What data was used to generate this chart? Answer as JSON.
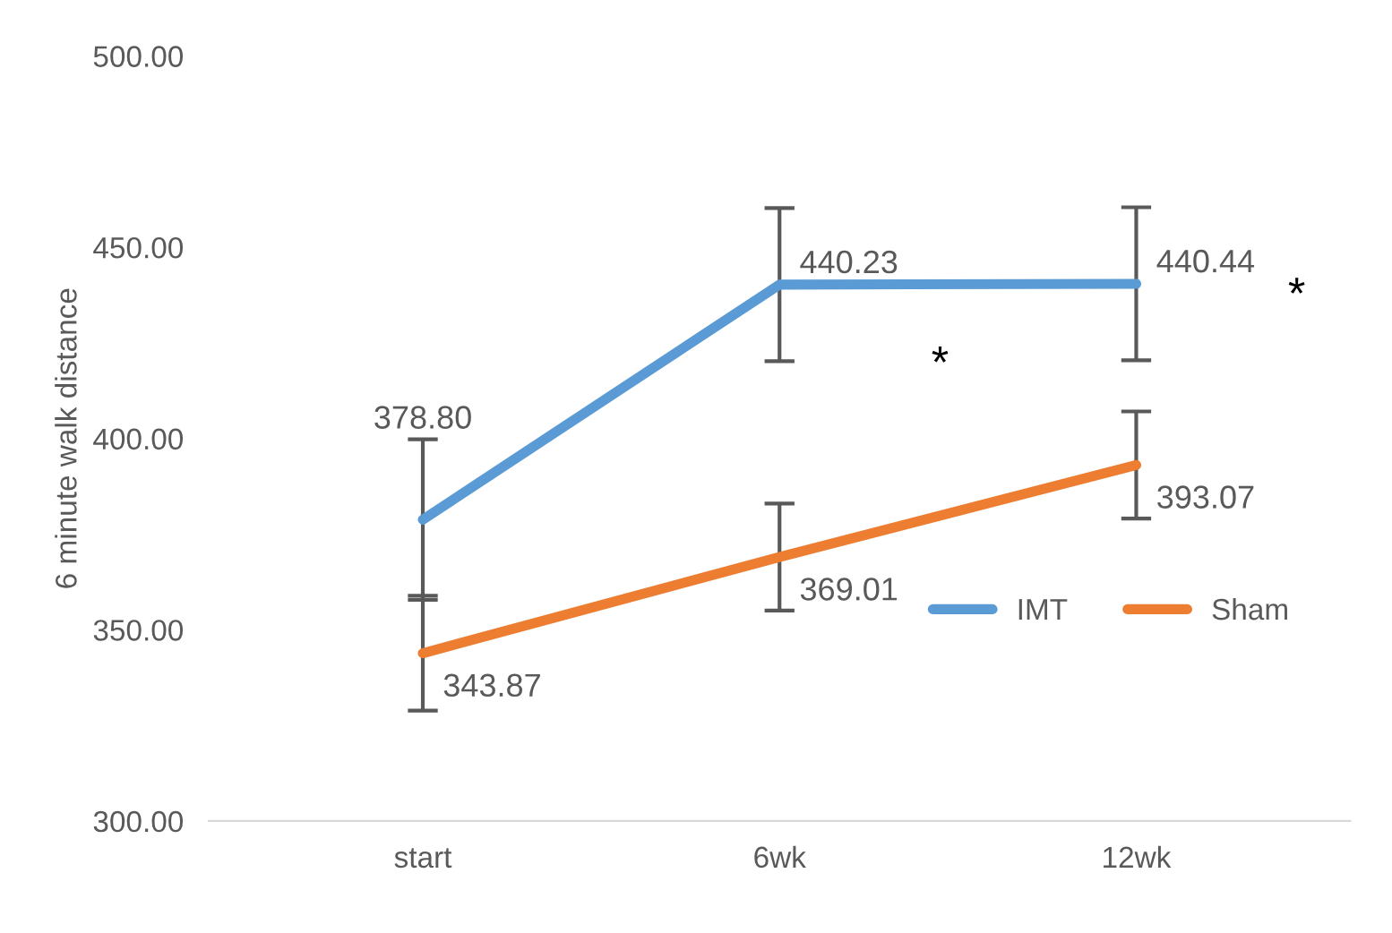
{
  "chart_data": {
    "type": "line",
    "ylabel": "6 minute walk distance",
    "categories": [
      "start",
      "6wk",
      "12wk"
    ],
    "series": [
      {
        "name": "IMT",
        "color": "#5b9bd5",
        "values": [
          378.8,
          440.23,
          440.44
        ],
        "errors": [
          21,
          20,
          20
        ],
        "value_labels": [
          "378.80",
          "440.23",
          "440.44"
        ]
      },
      {
        "name": "Sham",
        "color": "#ed7d31",
        "values": [
          343.87,
          369.01,
          393.07
        ],
        "errors": [
          15,
          14,
          14
        ],
        "value_labels": [
          "343.87",
          "369.01",
          "393.07"
        ]
      }
    ],
    "ylim": [
      300,
      500
    ],
    "yticks": [
      {
        "value": 300,
        "label": "300.00"
      },
      {
        "value": 350,
        "label": "350.00"
      },
      {
        "value": 400,
        "label": "400.00"
      },
      {
        "value": 450,
        "label": "450.00"
      },
      {
        "value": 500,
        "label": "500.00"
      }
    ],
    "grid": false,
    "legend": "bottom right",
    "marker": "none",
    "line_style": "solid",
    "annotations": [
      "*",
      "*"
    ]
  }
}
